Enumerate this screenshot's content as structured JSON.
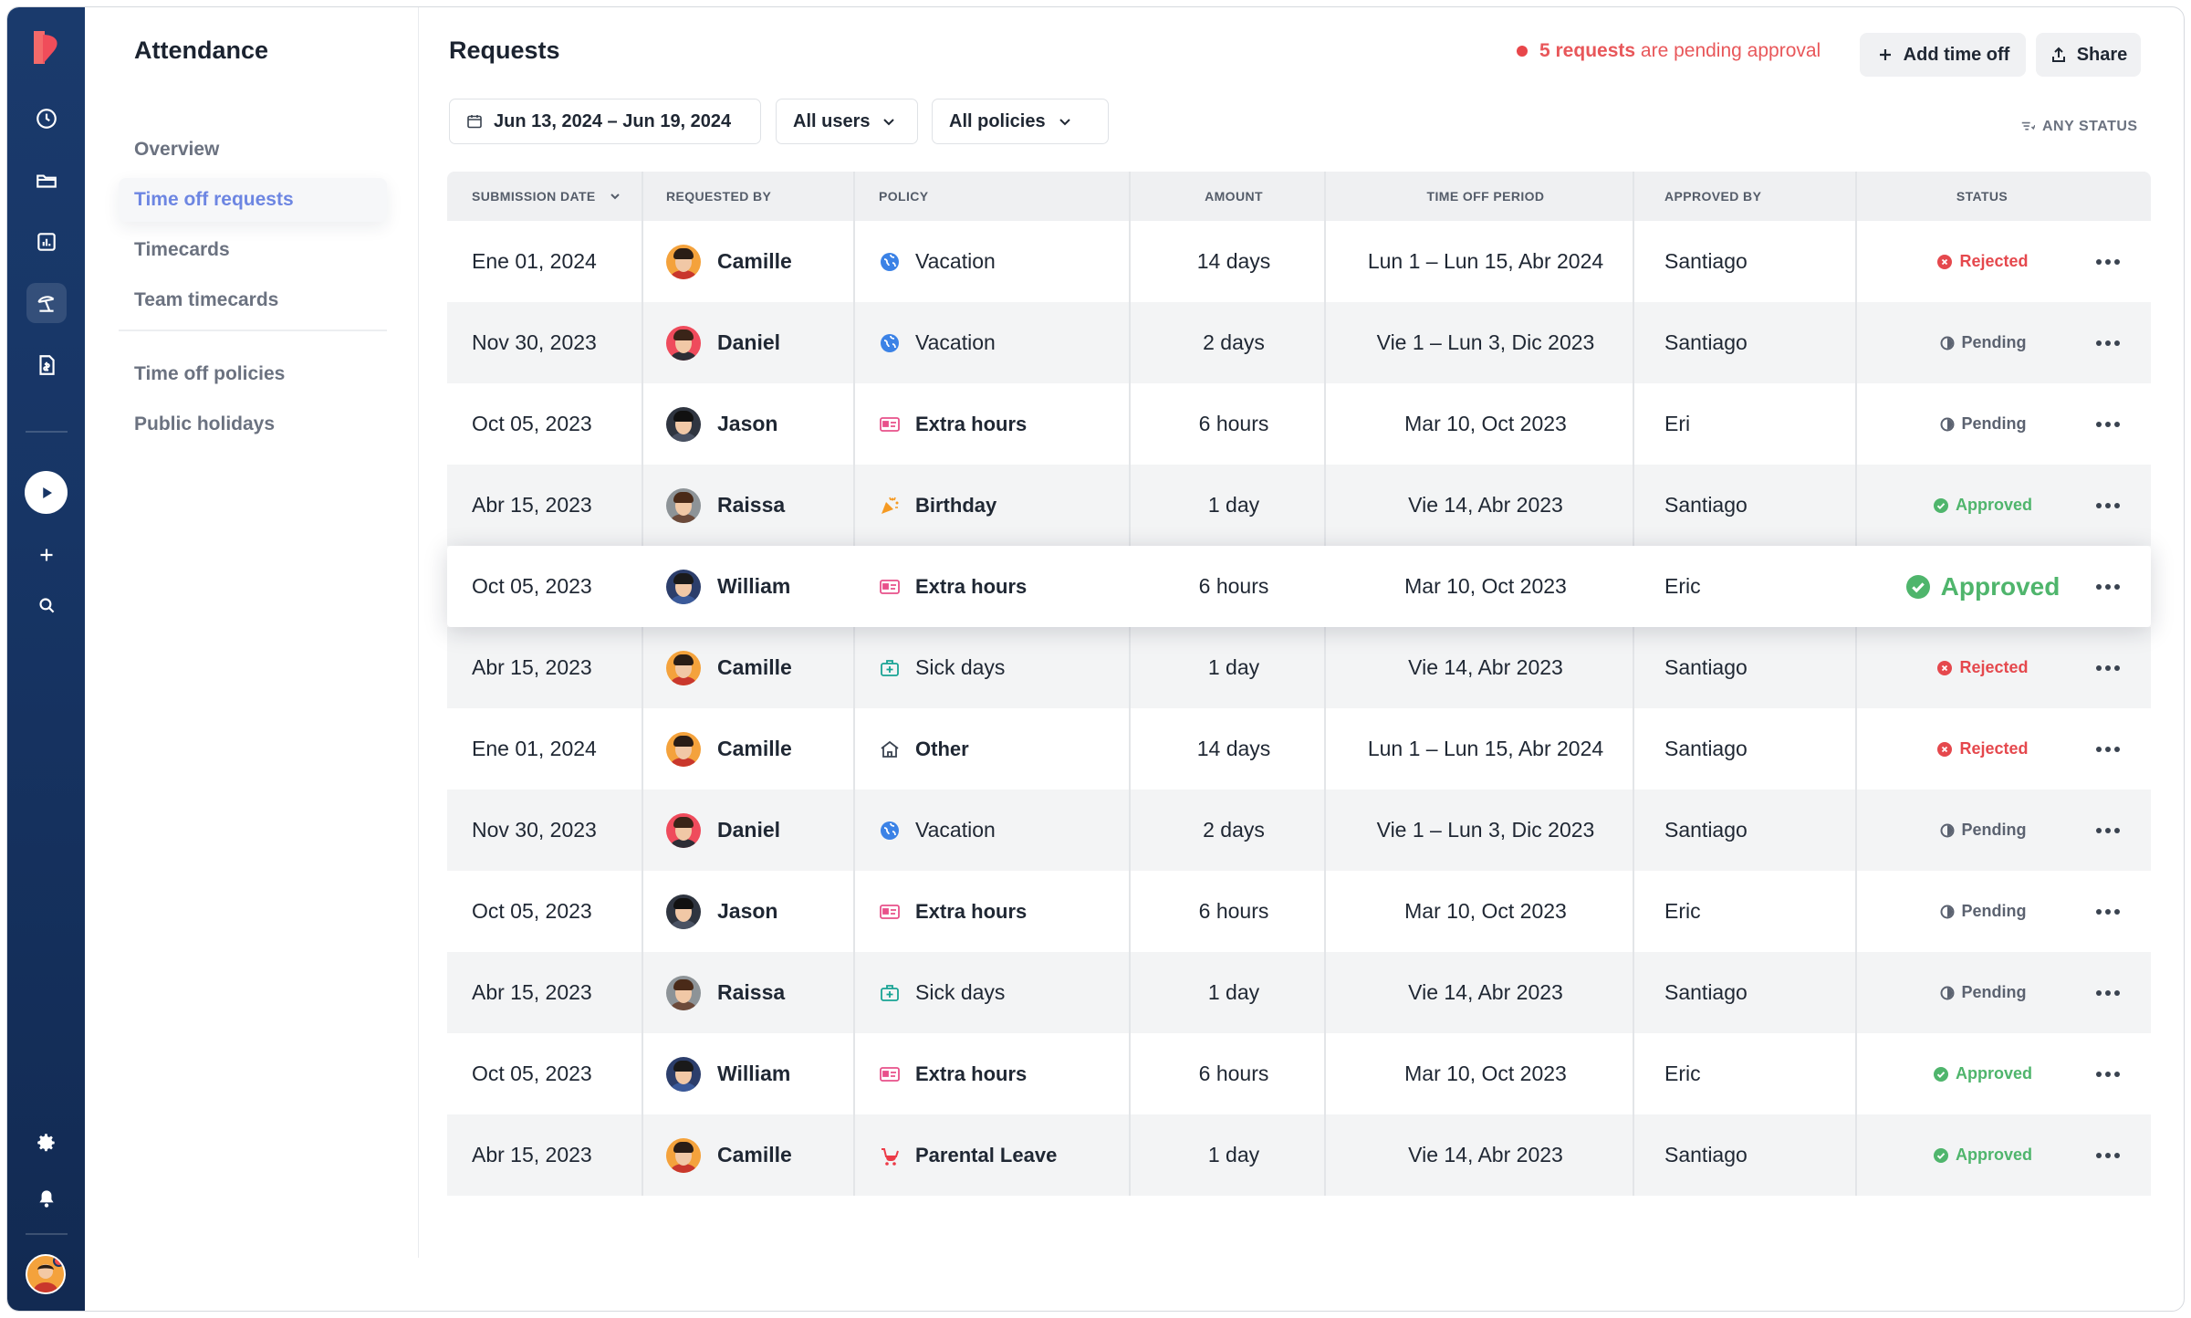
{
  "app": {
    "name": "Attendance"
  },
  "subnav": {
    "title": "Attendance",
    "items": [
      {
        "label": "Overview",
        "active": false
      },
      {
        "label": "Time off requests",
        "active": true
      },
      {
        "label": "Timecards",
        "active": false
      },
      {
        "label": "Team timecards",
        "active": false
      },
      {
        "label": "Time off policies",
        "active": false
      },
      {
        "label": "Public holidays",
        "active": false
      }
    ]
  },
  "main": {
    "title": "Requests",
    "pending": {
      "count_text": "5 requests",
      "suffix": " are pending approval"
    },
    "add_time_off": "Add time off",
    "share": "Share",
    "filters": {
      "date_range": "Jun 13, 2024 – Jun 19, 2024",
      "users": "All users",
      "policies": "All policies",
      "status": "ANY STATUS"
    }
  },
  "table": {
    "headers": {
      "submission_date": "SUBMISSION DATE",
      "requested_by": "REQUESTED BY",
      "policy": "POLICY",
      "amount": "AMOUNT",
      "time_off_period": "TIME OFF PERIOD",
      "approved_by": "APPROVED BY",
      "status": "STATUS"
    },
    "rows": [
      {
        "date": "Ene 01, 2024",
        "person": "Camille",
        "policy": "Vacation",
        "amount": "14 days",
        "period": "Lun 1 – Lun 15, Abr 2024",
        "approver": "Santiago",
        "status": "Rejected"
      },
      {
        "date": "Nov 30, 2023",
        "person": "Daniel",
        "policy": "Vacation",
        "amount": "2 days",
        "period": "Vie 1 – Lun 3, Dic 2023",
        "approver": "Santiago",
        "status": "Pending"
      },
      {
        "date": "Oct 05, 2023",
        "person": "Jason",
        "policy": "Extra hours",
        "amount": "6 hours",
        "period": "Mar 10, Oct 2023",
        "approver": "Eri",
        "status": "Pending"
      },
      {
        "date": "Abr 15, 2023",
        "person": "Raissa",
        "policy": "Birthday",
        "amount": "1 day",
        "period": "Vie 14, Abr 2023",
        "approver": "Santiago",
        "status": "Approved"
      },
      {
        "date": "Oct 05, 2023",
        "person": "William",
        "policy": "Extra hours",
        "amount": "6 hours",
        "period": "Mar 10, Oct 2023",
        "approver": "Eric",
        "status": "Approved"
      },
      {
        "date": "Abr 15, 2023",
        "person": "Camille",
        "policy": "Sick days",
        "amount": "1 day",
        "period": "Vie 14, Abr 2023",
        "approver": "Santiago",
        "status": "Rejected"
      },
      {
        "date": "Ene 01, 2024",
        "person": "Camille",
        "policy": "Other",
        "amount": "14 days",
        "period": "Lun 1 – Lun 15, Abr 2024",
        "approver": "Santiago",
        "status": "Rejected"
      },
      {
        "date": "Nov 30, 2023",
        "person": "Daniel",
        "policy": "Vacation",
        "amount": "2 days",
        "period": "Vie 1 – Lun 3, Dic 2023",
        "approver": "Santiago",
        "status": "Pending"
      },
      {
        "date": "Oct 05, 2023",
        "person": "Jason",
        "policy": "Extra hours",
        "amount": "6 hours",
        "period": "Mar 10, Oct 2023",
        "approver": "Eric",
        "status": "Pending"
      },
      {
        "date": "Abr 15, 2023",
        "person": "Raissa",
        "policy": "Sick days",
        "amount": "1 day",
        "period": "Vie 14, Abr 2023",
        "approver": "Santiago",
        "status": "Pending"
      },
      {
        "date": "Oct 05, 2023",
        "person": "William",
        "policy": "Extra hours",
        "amount": "6 hours",
        "period": "Mar 10, Oct 2023",
        "approver": "Eric",
        "status": "Approved"
      },
      {
        "date": "Abr 15, 2023",
        "person": "Camille",
        "policy": "Parental Leave",
        "amount": "1 day",
        "period": "Vie 14, Abr 2023",
        "approver": "Santiago",
        "status": "Approved"
      }
    ],
    "highlighted_row": 4
  },
  "colors": {
    "accent": "#6d86e2",
    "rejected": "#e5484d",
    "approved": "#4fb56c",
    "pending": "#5b6270",
    "rail": "#173565"
  }
}
